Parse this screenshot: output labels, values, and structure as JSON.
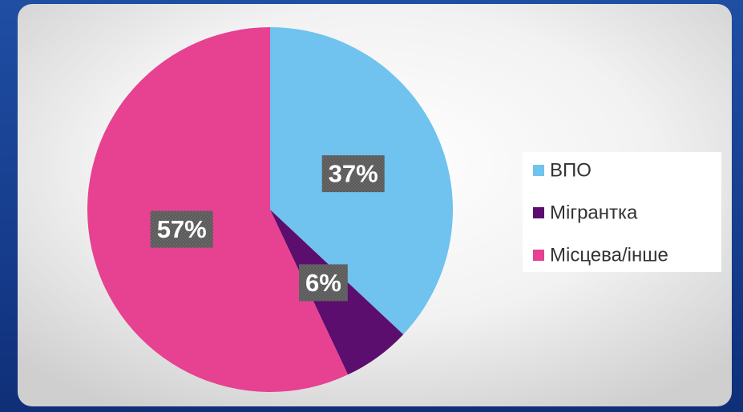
{
  "chart_data": {
    "type": "pie",
    "categories": [
      "ВПО",
      "Мігрантка",
      "Місцева/інше"
    ],
    "values": [
      37,
      6,
      57
    ],
    "value_labels": [
      "37%",
      "6%",
      "57%"
    ],
    "colors": [
      "#6fc3ee",
      "#5c0e6e",
      "#e64291"
    ],
    "legend": "right"
  }
}
